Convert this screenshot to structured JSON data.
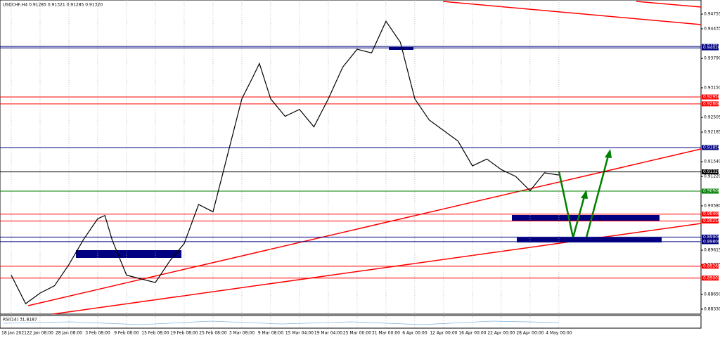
{
  "chart_data": {
    "type": "line",
    "title": "USDCHF,H4  0.91285 0.91321 0.91285 0.91320",
    "indicator_label": "RSI(14) 31.8187",
    "x": [
      0,
      0.5,
      1,
      1.5,
      2,
      2.5,
      3,
      3.25,
      3.5,
      4,
      4.5,
      5,
      5.5,
      6,
      6.5,
      7,
      7.5,
      8,
      8.37,
      8.61,
      9,
      9.5,
      10,
      10.5,
      11,
      11.5,
      12,
      12.5,
      13,
      13.5,
      14,
      14.5,
      15,
      15.5,
      16,
      16.5,
      17,
      17.5,
      18,
      18.5,
      19
    ],
    "series": [
      {
        "name": "USDCHF",
        "color": "#000000",
        "values": [
          0.8907,
          0.8845,
          0.8868,
          0.8884,
          0.893,
          0.8984,
          0.903,
          0.9037,
          0.8984,
          0.8907,
          0.8899,
          0.8891,
          0.8938,
          0.8976,
          0.9061,
          0.9045,
          0.9168,
          0.9291,
          0.9337,
          0.9368,
          0.9291,
          0.9253,
          0.9268,
          0.923,
          0.9291,
          0.936,
          0.9399,
          0.9391,
          0.946,
          0.9414,
          0.9291,
          0.9245,
          0.9222,
          0.9199,
          0.9145,
          0.916,
          0.9137,
          0.9122,
          0.9091,
          0.913,
          0.9125
        ]
      }
    ],
    "xlim": [
      -0.39,
      23.93
    ],
    "xticks": [
      {
        "value": 0,
        "label": "18 Jan 2021"
      },
      {
        "value": 1,
        "label": "22 Jan 08:00"
      },
      {
        "value": 2,
        "label": "28 Jan 08:00"
      },
      {
        "value": 3,
        "label": "3 Feb 08:00"
      },
      {
        "value": 4,
        "label": "9 Feb 08:00"
      },
      {
        "value": 5,
        "label": "15 Feb 08:00"
      },
      {
        "value": 6,
        "label": "19 Feb 08:00"
      },
      {
        "value": 7,
        "label": "25 Feb 08:00"
      },
      {
        "value": 8,
        "label": "3 Mar 08:00"
      },
      {
        "value": 9,
        "label": "9 Mar 08:00"
      },
      {
        "value": 10,
        "label": "15 Mar 04:00"
      },
      {
        "value": 11,
        "label": "19 Mar 04:00"
      },
      {
        "value": 12,
        "label": "25 Mar 00:00"
      },
      {
        "value": 13,
        "label": "31 Mar 00:00"
      },
      {
        "value": 14,
        "label": "6 Apr 00:00"
      },
      {
        "value": 15,
        "label": "12 Apr 00:00"
      },
      {
        "value": 16,
        "label": "16 Apr 00:00"
      },
      {
        "value": 17,
        "label": "22 Apr 00:00"
      },
      {
        "value": 18,
        "label": "28 Apr 00:00"
      },
      {
        "value": 19,
        "label": "4 May 00:00"
      }
    ],
    "ylim": [
      0.88223,
      0.95062
    ],
    "yticks": [
      {
        "value": 0.94755,
        "label": "0.94755"
      },
      {
        "value": 0.94435,
        "label": "0.94435"
      },
      {
        "value": 0.9379,
        "label": "0.93790"
      },
      {
        "value": 0.9315,
        "label": "0.93150"
      },
      {
        "value": 0.92505,
        "label": "0.92505"
      },
      {
        "value": 0.92185,
        "label": "0.92185"
      },
      {
        "value": 0.9154,
        "label": "0.91540"
      },
      {
        "value": 0.9122,
        "label": "0.91220"
      },
      {
        "value": 0.9058,
        "label": "0.90580"
      },
      {
        "value": 0.89615,
        "label": "0.89615"
      },
      {
        "value": 0.89295,
        "label": "0.89295"
      },
      {
        "value": 0.8865,
        "label": "0.88650"
      },
      {
        "value": 0.8833,
        "label": "0.88330"
      }
    ],
    "levels": [
      {
        "value": 0.9405,
        "label": "0.94050",
        "color": "#000080"
      },
      {
        "value": 0.9402,
        "label": "0.94020",
        "color": "#000080"
      },
      {
        "value": 0.9295,
        "label": "0.92950",
        "color": "#ff0000"
      },
      {
        "value": 0.928,
        "label": "0.92800",
        "color": "#ff0000"
      },
      {
        "value": 0.9185,
        "label": "0.91850",
        "color": "#000080"
      },
      {
        "value": 0.9132,
        "label": "0.91320",
        "color": "#000000"
      },
      {
        "value": 0.909,
        "label": "0.90900",
        "color": "#008000"
      },
      {
        "value": 0.904,
        "label": "0.90400",
        "color": "#ff0000"
      },
      {
        "value": 0.9025,
        "label": "0.90250",
        "color": "#ff0000"
      },
      {
        "value": 0.899,
        "label": "0.89900",
        "color": "#000080"
      },
      {
        "value": 0.898,
        "label": "0.89800",
        "color": "#000080"
      },
      {
        "value": 0.89265,
        "label": "0.89265",
        "color": "#ff0000"
      },
      {
        "value": 0.89007,
        "label": "0.89007",
        "color": "#ff0000"
      }
    ],
    "grid": true
  }
}
